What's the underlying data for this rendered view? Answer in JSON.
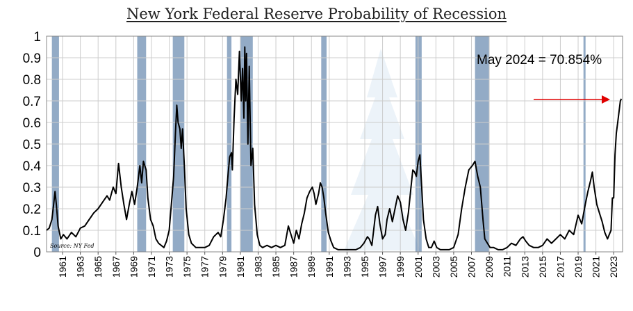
{
  "chart_data": {
    "type": "line",
    "title": "New York Federal Reserve Probability of Recession",
    "xlabel": "",
    "ylabel": "",
    "xlim": [
      1959.7,
      2024.5
    ],
    "ylim": [
      0,
      1
    ],
    "grid": true,
    "y_ticks": [
      "0",
      "0.1",
      "0.2",
      "0.3",
      "0.4",
      "0.5",
      "0.6",
      "0.7",
      "0.8",
      "0.9",
      "1"
    ],
    "x_ticks": [
      "1961",
      "1963",
      "1965",
      "1967",
      "1969",
      "1971",
      "1973",
      "1975",
      "1977",
      "1979",
      "1981",
      "1983",
      "1985",
      "1987",
      "1989",
      "1991",
      "1993",
      "1995",
      "1997",
      "1999",
      "2001",
      "2003",
      "2005",
      "2007",
      "2009",
      "2011",
      "2013",
      "2015",
      "2017",
      "2019",
      "2021",
      "2023"
    ],
    "annotation": "May 2024 = 70.854%",
    "source": "Source: NY Fed",
    "colors": {
      "line": "#000000",
      "recession_band": "#6f8fb3",
      "arrow": "#e00000",
      "grid": "#cccccc"
    },
    "recessions": [
      {
        "start": 1960.3,
        "end": 1961.1
      },
      {
        "start": 1969.9,
        "end": 1970.9
      },
      {
        "start": 1973.9,
        "end": 1975.2
      },
      {
        "start": 1980.0,
        "end": 1980.5
      },
      {
        "start": 1981.5,
        "end": 1982.9
      },
      {
        "start": 1990.6,
        "end": 1991.2
      },
      {
        "start": 2001.2,
        "end": 2001.9
      },
      {
        "start": 2007.9,
        "end": 2009.5
      },
      {
        "start": 2020.1,
        "end": 2020.3
      }
    ],
    "series": [
      {
        "name": "",
        "points": [
          [
            1959.7,
            0.1
          ],
          [
            1960.0,
            0.11
          ],
          [
            1960.3,
            0.15
          ],
          [
            1960.5,
            0.22
          ],
          [
            1960.65,
            0.28
          ],
          [
            1960.8,
            0.22
          ],
          [
            1961.0,
            0.12
          ],
          [
            1961.3,
            0.06
          ],
          [
            1961.6,
            0.08
          ],
          [
            1962.0,
            0.06
          ],
          [
            1962.5,
            0.09
          ],
          [
            1963.0,
            0.07
          ],
          [
            1963.5,
            0.11
          ],
          [
            1964.0,
            0.12
          ],
          [
            1964.5,
            0.15
          ],
          [
            1965.0,
            0.18
          ],
          [
            1965.5,
            0.2
          ],
          [
            1966.0,
            0.23
          ],
          [
            1966.5,
            0.26
          ],
          [
            1966.8,
            0.24
          ],
          [
            1967.2,
            0.3
          ],
          [
            1967.5,
            0.27
          ],
          [
            1967.8,
            0.41
          ],
          [
            1968.1,
            0.3
          ],
          [
            1968.4,
            0.22
          ],
          [
            1968.7,
            0.15
          ],
          [
            1969.0,
            0.22
          ],
          [
            1969.3,
            0.28
          ],
          [
            1969.6,
            0.22
          ],
          [
            1969.9,
            0.3
          ],
          [
            1970.2,
            0.4
          ],
          [
            1970.4,
            0.32
          ],
          [
            1970.6,
            0.42
          ],
          [
            1970.9,
            0.38
          ],
          [
            1971.1,
            0.25
          ],
          [
            1971.4,
            0.15
          ],
          [
            1971.7,
            0.12
          ],
          [
            1972.0,
            0.06
          ],
          [
            1972.3,
            0.04
          ],
          [
            1972.6,
            0.03
          ],
          [
            1972.9,
            0.02
          ],
          [
            1973.2,
            0.05
          ],
          [
            1973.5,
            0.1
          ],
          [
            1973.8,
            0.25
          ],
          [
            1974.0,
            0.35
          ],
          [
            1974.2,
            0.55
          ],
          [
            1974.35,
            0.68
          ],
          [
            1974.5,
            0.6
          ],
          [
            1974.7,
            0.57
          ],
          [
            1974.85,
            0.48
          ],
          [
            1975.0,
            0.57
          ],
          [
            1975.2,
            0.4
          ],
          [
            1975.4,
            0.2
          ],
          [
            1975.7,
            0.08
          ],
          [
            1976.0,
            0.04
          ],
          [
            1976.5,
            0.02
          ],
          [
            1977.0,
            0.02
          ],
          [
            1977.5,
            0.02
          ],
          [
            1978.0,
            0.03
          ],
          [
            1978.5,
            0.07
          ],
          [
            1979.0,
            0.09
          ],
          [
            1979.3,
            0.07
          ],
          [
            1979.6,
            0.15
          ],
          [
            1979.9,
            0.25
          ],
          [
            1980.1,
            0.35
          ],
          [
            1980.3,
            0.44
          ],
          [
            1980.5,
            0.46
          ],
          [
            1980.6,
            0.38
          ],
          [
            1980.8,
            0.62
          ],
          [
            1981.0,
            0.8
          ],
          [
            1981.2,
            0.73
          ],
          [
            1981.4,
            0.93
          ],
          [
            1981.6,
            0.7
          ],
          [
            1981.75,
            0.85
          ],
          [
            1981.9,
            0.62
          ],
          [
            1982.0,
            0.95
          ],
          [
            1982.1,
            0.7
          ],
          [
            1982.2,
            0.92
          ],
          [
            1982.35,
            0.5
          ],
          [
            1982.5,
            0.86
          ],
          [
            1982.7,
            0.4
          ],
          [
            1982.9,
            0.48
          ],
          [
            1983.1,
            0.22
          ],
          [
            1983.4,
            0.08
          ],
          [
            1983.7,
            0.03
          ],
          [
            1984.0,
            0.02
          ],
          [
            1984.5,
            0.03
          ],
          [
            1985.0,
            0.02
          ],
          [
            1985.5,
            0.03
          ],
          [
            1986.0,
            0.02
          ],
          [
            1986.5,
            0.03
          ],
          [
            1986.9,
            0.12
          ],
          [
            1987.2,
            0.08
          ],
          [
            1987.5,
            0.04
          ],
          [
            1987.8,
            0.1
          ],
          [
            1988.1,
            0.06
          ],
          [
            1988.4,
            0.13
          ],
          [
            1988.7,
            0.18
          ],
          [
            1989.0,
            0.25
          ],
          [
            1989.3,
            0.28
          ],
          [
            1989.6,
            0.3
          ],
          [
            1989.8,
            0.27
          ],
          [
            1990.0,
            0.22
          ],
          [
            1990.3,
            0.27
          ],
          [
            1990.5,
            0.32
          ],
          [
            1990.7,
            0.3
          ],
          [
            1990.9,
            0.25
          ],
          [
            1991.1,
            0.18
          ],
          [
            1991.4,
            0.09
          ],
          [
            1991.7,
            0.05
          ],
          [
            1992.0,
            0.02
          ],
          [
            1992.5,
            0.01
          ],
          [
            1993.0,
            0.01
          ],
          [
            1993.5,
            0.01
          ],
          [
            1994.0,
            0.01
          ],
          [
            1994.5,
            0.01
          ],
          [
            1995.0,
            0.02
          ],
          [
            1995.4,
            0.04
          ],
          [
            1995.8,
            0.07
          ],
          [
            1996.0,
            0.06
          ],
          [
            1996.3,
            0.03
          ],
          [
            1996.7,
            0.17
          ],
          [
            1996.95,
            0.21
          ],
          [
            1997.2,
            0.13
          ],
          [
            1997.5,
            0.06
          ],
          [
            1997.8,
            0.08
          ],
          [
            1998.0,
            0.15
          ],
          [
            1998.3,
            0.2
          ],
          [
            1998.6,
            0.14
          ],
          [
            1998.9,
            0.2
          ],
          [
            1999.2,
            0.26
          ],
          [
            1999.5,
            0.23
          ],
          [
            1999.8,
            0.15
          ],
          [
            2000.1,
            0.1
          ],
          [
            2000.4,
            0.18
          ],
          [
            2000.7,
            0.3
          ],
          [
            2000.9,
            0.38
          ],
          [
            2001.1,
            0.37
          ],
          [
            2001.3,
            0.35
          ],
          [
            2001.5,
            0.42
          ],
          [
            2001.7,
            0.45
          ],
          [
            2001.9,
            0.3
          ],
          [
            2002.1,
            0.15
          ],
          [
            2002.4,
            0.06
          ],
          [
            2002.7,
            0.02
          ],
          [
            2003.0,
            0.02
          ],
          [
            2003.3,
            0.05
          ],
          [
            2003.6,
            0.02
          ],
          [
            2004.0,
            0.01
          ],
          [
            2004.5,
            0.01
          ],
          [
            2005.0,
            0.01
          ],
          [
            2005.5,
            0.02
          ],
          [
            2006.0,
            0.08
          ],
          [
            2006.4,
            0.2
          ],
          [
            2006.8,
            0.3
          ],
          [
            2007.2,
            0.38
          ],
          [
            2007.6,
            0.4
          ],
          [
            2007.9,
            0.42
          ],
          [
            2008.2,
            0.35
          ],
          [
            2008.5,
            0.3
          ],
          [
            2008.8,
            0.15
          ],
          [
            2009.0,
            0.06
          ],
          [
            2009.3,
            0.04
          ],
          [
            2009.6,
            0.02
          ],
          [
            2010.0,
            0.02
          ],
          [
            2010.5,
            0.01
          ],
          [
            2011.0,
            0.01
          ],
          [
            2011.5,
            0.02
          ],
          [
            2012.0,
            0.04
          ],
          [
            2012.5,
            0.03
          ],
          [
            2013.0,
            0.06
          ],
          [
            2013.3,
            0.07
          ],
          [
            2013.6,
            0.05
          ],
          [
            2014.0,
            0.03
          ],
          [
            2014.5,
            0.02
          ],
          [
            2015.0,
            0.02
          ],
          [
            2015.5,
            0.03
          ],
          [
            2016.0,
            0.06
          ],
          [
            2016.5,
            0.04
          ],
          [
            2017.0,
            0.06
          ],
          [
            2017.5,
            0.08
          ],
          [
            2018.0,
            0.06
          ],
          [
            2018.5,
            0.1
          ],
          [
            2019.0,
            0.08
          ],
          [
            2019.5,
            0.17
          ],
          [
            2019.9,
            0.13
          ],
          [
            2020.3,
            0.22
          ],
          [
            2020.6,
            0.28
          ],
          [
            2020.9,
            0.33
          ],
          [
            2021.1,
            0.37
          ],
          [
            2021.3,
            0.3
          ],
          [
            2021.6,
            0.22
          ],
          [
            2021.9,
            0.18
          ],
          [
            2022.2,
            0.14
          ],
          [
            2022.5,
            0.09
          ],
          [
            2022.8,
            0.06
          ],
          [
            2023.0,
            0.08
          ],
          [
            2023.2,
            0.1
          ],
          [
            2023.35,
            0.25
          ],
          [
            2023.5,
            0.25
          ],
          [
            2023.65,
            0.45
          ],
          [
            2023.8,
            0.55
          ],
          [
            2023.95,
            0.6
          ],
          [
            2024.1,
            0.65
          ],
          [
            2024.25,
            0.7
          ],
          [
            2024.37,
            0.71
          ]
        ]
      }
    ]
  }
}
